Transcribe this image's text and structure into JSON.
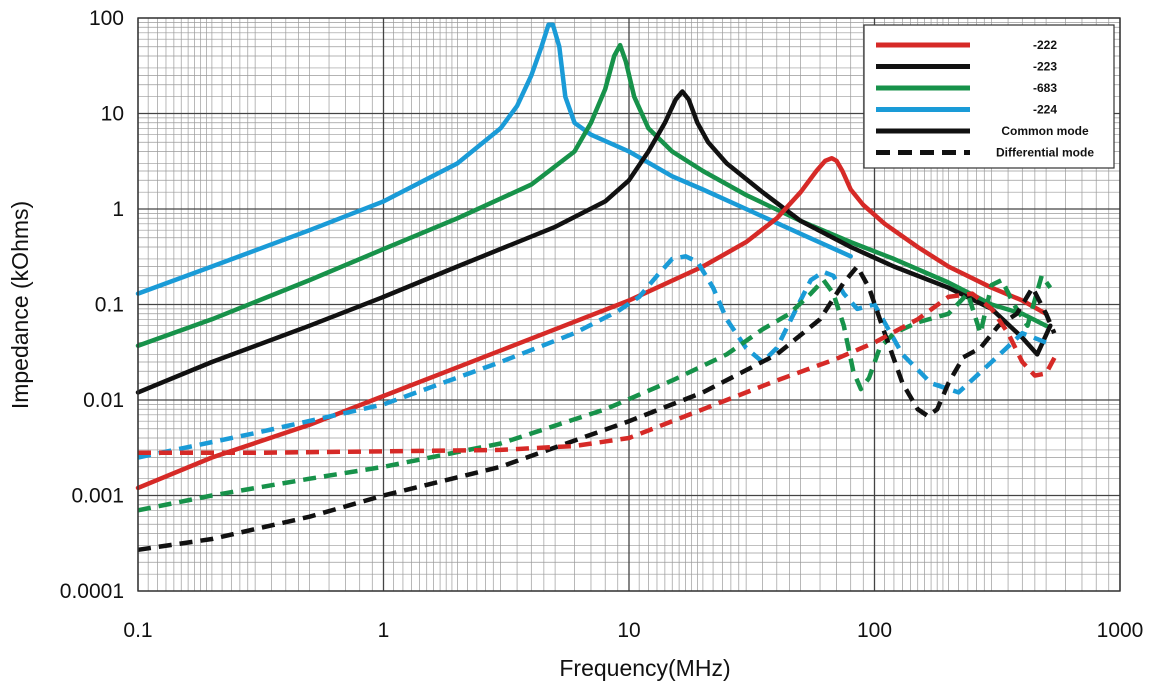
{
  "chart_data": {
    "type": "line",
    "xlabel": "Frequency(MHz)",
    "ylabel": "Impedance (kOhms)",
    "x_scale": "log",
    "y_scale": "log",
    "xlim": [
      0.1,
      1000
    ],
    "ylim": [
      0.0001,
      100
    ],
    "x_ticks": [
      {
        "value": 0.1,
        "label": "0.1"
      },
      {
        "value": 1,
        "label": "1"
      },
      {
        "value": 10,
        "label": "10"
      },
      {
        "value": 100,
        "label": "100"
      },
      {
        "value": 1000,
        "label": "1000"
      }
    ],
    "y_ticks": [
      {
        "value": 0.0001,
        "label": "0.0001"
      },
      {
        "value": 0.001,
        "label": "0.001"
      },
      {
        "value": 0.01,
        "label": "0.01"
      },
      {
        "value": 0.1,
        "label": "0.1"
      },
      {
        "value": 1,
        "label": "1"
      },
      {
        "value": 10,
        "label": "10"
      },
      {
        "value": 100,
        "label": "100"
      }
    ],
    "grid": true,
    "legend_position": "top-right",
    "legend": [
      {
        "label": "-222",
        "color": "#d62a27",
        "style": "solid"
      },
      {
        "label": "-223",
        "color": "#111111",
        "style": "solid"
      },
      {
        "label": "-683",
        "color": "#17924a",
        "style": "solid"
      },
      {
        "label": "-224",
        "color": "#1a9bd7",
        "style": "solid"
      },
      {
        "label": "Common mode",
        "color": "#111111",
        "style": "solid"
      },
      {
        "label": "Differential mode",
        "color": "#111111",
        "style": "dashed"
      }
    ],
    "series": [
      {
        "part": "-224",
        "mode": "common",
        "color": "#1a9bd7",
        "style": "solid",
        "x": [
          0.1,
          0.2,
          0.5,
          1,
          2,
          3,
          3.5,
          4,
          4.4,
          4.7,
          4.9,
          5.2,
          5.5,
          6,
          7,
          10,
          15,
          20,
          30,
          50,
          80
        ],
        "y": [
          0.13,
          0.25,
          0.6,
          1.2,
          3,
          7,
          12,
          25,
          50,
          85,
          85,
          50,
          15,
          8,
          6,
          4,
          2.2,
          1.6,
          1,
          0.55,
          0.32
        ]
      },
      {
        "part": "-683",
        "mode": "common",
        "color": "#17924a",
        "style": "solid",
        "x": [
          0.1,
          0.2,
          0.5,
          1,
          2,
          4,
          6,
          7,
          8,
          8.7,
          9.2,
          9.7,
          10.5,
          12,
          15,
          20,
          30,
          50,
          80,
          120,
          200,
          300,
          400,
          500
        ],
        "y": [
          0.037,
          0.07,
          0.18,
          0.38,
          0.8,
          1.8,
          4,
          8,
          18,
          40,
          52,
          35,
          15,
          7,
          4,
          2.5,
          1.4,
          0.75,
          0.45,
          0.3,
          0.17,
          0.1,
          0.08,
          0.06
        ]
      },
      {
        "part": "-223",
        "mode": "common",
        "color": "#111111",
        "style": "solid",
        "x": [
          0.1,
          0.2,
          0.5,
          1,
          2,
          5,
          8,
          10,
          12,
          14,
          15.5,
          16.5,
          17.5,
          19,
          21,
          25,
          35,
          50,
          80,
          120,
          200,
          300,
          400,
          460,
          520
        ],
        "y": [
          0.012,
          0.025,
          0.06,
          0.12,
          0.25,
          0.65,
          1.2,
          2,
          4,
          8,
          14,
          17,
          14,
          8,
          5,
          3,
          1.5,
          0.75,
          0.4,
          0.25,
          0.15,
          0.09,
          0.045,
          0.03,
          0.06
        ]
      },
      {
        "part": "-222",
        "mode": "common",
        "color": "#d62a27",
        "style": "solid",
        "x": [
          0.1,
          0.2,
          0.5,
          1,
          2,
          5,
          10,
          20,
          30,
          40,
          50,
          58,
          63,
          67,
          70,
          74,
          80,
          90,
          110,
          150,
          200,
          300,
          400,
          500
        ],
        "y": [
          0.0012,
          0.0025,
          0.0055,
          0.011,
          0.022,
          0.055,
          0.11,
          0.25,
          0.45,
          0.8,
          1.5,
          2.5,
          3.2,
          3.4,
          3.2,
          2.5,
          1.6,
          1.1,
          0.7,
          0.4,
          0.25,
          0.15,
          0.11,
          0.08
        ]
      },
      {
        "part": "-224",
        "mode": "differential",
        "color": "#1a9bd7",
        "style": "dashed",
        "x": [
          0.1,
          0.3,
          1,
          3,
          6,
          9,
          11,
          13,
          15,
          17,
          19,
          22,
          25,
          30,
          35,
          40,
          48,
          55,
          62,
          68,
          75,
          85,
          100,
          130,
          170,
          220,
          300,
          400,
          500
        ],
        "y": [
          0.0025,
          0.0045,
          0.009,
          0.025,
          0.05,
          0.085,
          0.12,
          0.2,
          0.3,
          0.32,
          0.28,
          0.15,
          0.07,
          0.035,
          0.025,
          0.035,
          0.09,
          0.18,
          0.22,
          0.2,
          0.13,
          0.09,
          0.1,
          0.03,
          0.015,
          0.012,
          0.025,
          0.05,
          0.04
        ]
      },
      {
        "part": "-683",
        "mode": "differential",
        "color": "#17924a",
        "style": "dashed",
        "x": [
          0.1,
          0.2,
          0.5,
          1,
          3,
          8,
          15,
          25,
          35,
          45,
          55,
          62,
          68,
          75,
          82,
          88,
          95,
          105,
          120,
          150,
          200,
          240,
          270,
          300,
          330,
          370,
          420,
          480,
          520
        ],
        "y": [
          0.0007,
          0.001,
          0.0015,
          0.002,
          0.0035,
          0.008,
          0.016,
          0.03,
          0.055,
          0.08,
          0.13,
          0.18,
          0.13,
          0.06,
          0.02,
          0.013,
          0.017,
          0.035,
          0.05,
          0.065,
          0.08,
          0.13,
          0.05,
          0.16,
          0.18,
          0.1,
          0.06,
          0.2,
          0.15
        ]
      },
      {
        "part": "-223",
        "mode": "differential",
        "color": "#111111",
        "style": "dashed",
        "x": [
          0.1,
          0.2,
          0.5,
          1,
          3,
          10,
          20,
          40,
          60,
          75,
          85,
          95,
          110,
          130,
          150,
          165,
          180,
          200,
          230,
          270,
          320,
          380,
          440,
          500,
          540
        ],
        "y": [
          0.00027,
          0.00035,
          0.0006,
          0.001,
          0.002,
          0.006,
          0.012,
          0.03,
          0.07,
          0.17,
          0.25,
          0.15,
          0.05,
          0.015,
          0.008,
          0.0068,
          0.008,
          0.015,
          0.028,
          0.035,
          0.06,
          0.08,
          0.15,
          0.08,
          0.05
        ]
      },
      {
        "part": "-222",
        "mode": "differential",
        "color": "#d62a27",
        "style": "dashed",
        "x": [
          0.1,
          0.3,
          1,
          3,
          6,
          10,
          20,
          40,
          70,
          100,
          150,
          200,
          250,
          300,
          350,
          400,
          450,
          500,
          550
        ],
        "y": [
          0.0028,
          0.0028,
          0.0029,
          0.003,
          0.0033,
          0.004,
          0.008,
          0.016,
          0.027,
          0.04,
          0.07,
          0.12,
          0.13,
          0.09,
          0.05,
          0.025,
          0.018,
          0.019,
          0.03
        ]
      }
    ]
  }
}
